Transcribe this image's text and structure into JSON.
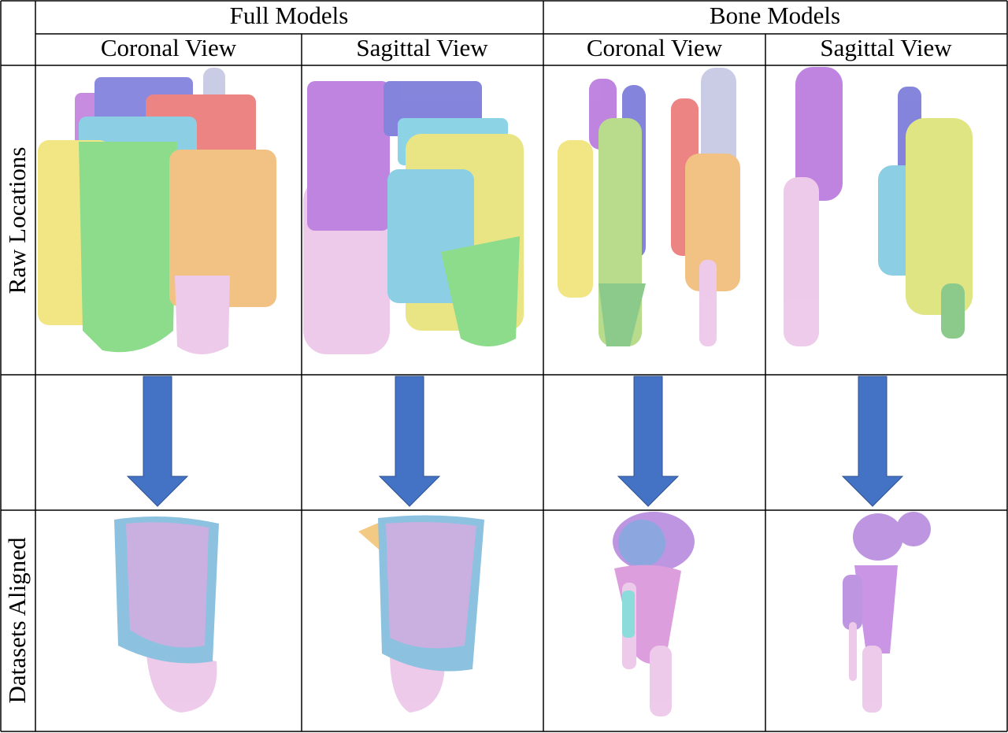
{
  "group_headers": [
    "Full Models",
    "Bone Models"
  ],
  "view_headers": [
    "Coronal View",
    "Sagittal View",
    "Coronal View",
    "Sagittal View"
  ],
  "row_labels": [
    "Raw Locations",
    "Datasets Aligned"
  ]
}
